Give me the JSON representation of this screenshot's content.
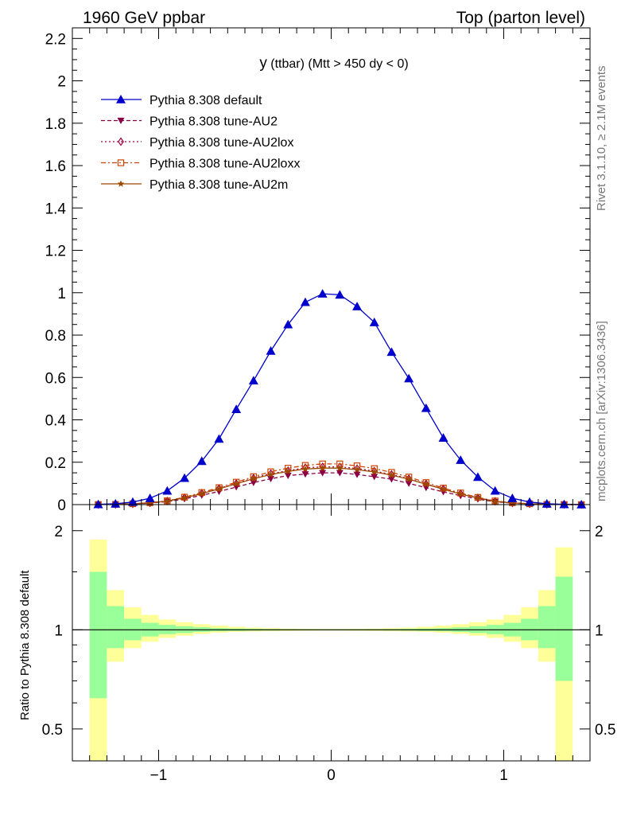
{
  "header": {
    "left": "1960 GeV ppbar",
    "right": "Top (parton level)"
  },
  "side": {
    "rivet": "Rivet 3.1.10, ≥ 2.1M events",
    "mcplots": "mcplots.cern.ch [arXiv:1306.3436]"
  },
  "chart_data": [
    {
      "type": "line",
      "title": "y (ttbar) (Mtt > 450 dy < 0)",
      "title_main": "y",
      "title_rest": " (ttbar) (Mtt > 450 dy < 0)",
      "xlim": [
        -1.5,
        1.5
      ],
      "ylim": [
        0,
        2.25
      ],
      "yticks": [
        0,
        0.2,
        0.4,
        0.6,
        0.8,
        1,
        1.2,
        1.4,
        1.6,
        1.8,
        2,
        2.2
      ],
      "ytick_labels": [
        "0",
        "0.2",
        "0.4",
        "0.6",
        "0.8",
        "1",
        "1.2",
        "1.4",
        "1.6",
        "1.8",
        "2",
        "2.2"
      ],
      "x": [
        -1.35,
        -1.25,
        -1.15,
        -1.05,
        -0.95,
        -0.85,
        -0.75,
        -0.65,
        -0.55,
        -0.45,
        -0.35,
        -0.25,
        -0.15,
        -0.05,
        0.05,
        0.15,
        0.25,
        0.35,
        0.45,
        0.55,
        0.65,
        0.75,
        0.85,
        0.95,
        1.05,
        1.15,
        1.25,
        1.35,
        1.45
      ],
      "series": [
        {
          "name": "Pythia 8.308 default",
          "color": "#0000cc",
          "marker": "triangle-up",
          "dash": "",
          "values": [
            0.001,
            0.004,
            0.012,
            0.03,
            0.065,
            0.125,
            0.205,
            0.31,
            0.45,
            0.585,
            0.725,
            0.85,
            0.955,
            0.995,
            0.99,
            0.935,
            0.86,
            0.72,
            0.595,
            0.455,
            0.315,
            0.21,
            0.13,
            0.065,
            0.03,
            0.012,
            0.004,
            0.001,
            0.0
          ]
        },
        {
          "name": "Pythia 8.308 tune-AU2",
          "color": "#8b0045",
          "marker": "triangle-down",
          "dash": "5,3",
          "values": [
            0.0005,
            0.001,
            0.003,
            0.007,
            0.014,
            0.027,
            0.044,
            0.062,
            0.083,
            0.104,
            0.122,
            0.137,
            0.144,
            0.15,
            0.15,
            0.142,
            0.132,
            0.12,
            0.1,
            0.08,
            0.06,
            0.042,
            0.026,
            0.013,
            0.007,
            0.003,
            0.001,
            0.0005,
            0.0
          ]
        },
        {
          "name": "Pythia 8.308 tune-AU2lox",
          "color": "#a0003c",
          "marker": "diamond-open",
          "dash": "2,3",
          "values": [
            0.0005,
            0.001,
            0.004,
            0.008,
            0.017,
            0.033,
            0.054,
            0.076,
            0.1,
            0.125,
            0.146,
            0.16,
            0.174,
            0.178,
            0.178,
            0.17,
            0.158,
            0.142,
            0.122,
            0.098,
            0.074,
            0.052,
            0.032,
            0.016,
            0.008,
            0.004,
            0.001,
            0.0005,
            0.0
          ]
        },
        {
          "name": "Pythia 8.308 tune-AU2loxx",
          "color": "#cc4400",
          "marker": "square-open",
          "dash": "6,3,2,3",
          "values": [
            0.0005,
            0.001,
            0.004,
            0.009,
            0.018,
            0.035,
            0.057,
            0.08,
            0.106,
            0.132,
            0.155,
            0.172,
            0.185,
            0.192,
            0.192,
            0.183,
            0.17,
            0.152,
            0.13,
            0.104,
            0.078,
            0.055,
            0.034,
            0.017,
            0.009,
            0.004,
            0.001,
            0.0005,
            0.0
          ]
        },
        {
          "name": "Pythia 8.308 tune-AU2m",
          "color": "#9b4a00",
          "marker": "star",
          "dash": "",
          "values": [
            0.0005,
            0.001,
            0.004,
            0.008,
            0.016,
            0.032,
            0.052,
            0.074,
            0.098,
            0.122,
            0.142,
            0.157,
            0.168,
            0.172,
            0.172,
            0.165,
            0.154,
            0.139,
            0.12,
            0.096,
            0.072,
            0.05,
            0.031,
            0.015,
            0.008,
            0.004,
            0.001,
            0.0005,
            0.0
          ]
        }
      ]
    },
    {
      "type": "area",
      "ylabel": "Ratio to Pythia 8.308 default",
      "xlim": [
        -1.5,
        1.5
      ],
      "ylim": [
        0.4,
        2.4
      ],
      "log_y": true,
      "xticks": [
        -1,
        0,
        1
      ],
      "xtick_labels": [
        "−1",
        "0",
        "1"
      ],
      "yticks": [
        0.5,
        1,
        2
      ],
      "ytick_labels": [
        "0.5",
        "1",
        "2"
      ],
      "bin_edges": [
        -1.4,
        -1.3,
        -1.2,
        -1.1,
        -1.0,
        -0.9,
        -0.8,
        -0.7,
        -0.6,
        -0.5,
        -0.4,
        -0.3,
        -0.2,
        -0.1,
        0.0,
        0.1,
        0.2,
        0.3,
        0.4,
        0.5,
        0.6,
        0.7,
        0.8,
        0.9,
        1.0,
        1.1,
        1.2,
        1.3,
        1.4
      ],
      "band_green": {
        "low": [
          0.62,
          0.88,
          0.93,
          0.955,
          0.97,
          0.978,
          0.985,
          0.99,
          0.992,
          0.994,
          0.995,
          0.996,
          0.997,
          0.997,
          0.997,
          0.997,
          0.996,
          0.995,
          0.994,
          0.992,
          0.99,
          0.985,
          0.978,
          0.97,
          0.955,
          0.93,
          0.88,
          0.7
        ],
        "high": [
          1.5,
          1.18,
          1.08,
          1.05,
          1.035,
          1.025,
          1.018,
          1.012,
          1.009,
          1.007,
          1.005,
          1.004,
          1.003,
          1.003,
          1.003,
          1.003,
          1.004,
          1.005,
          1.007,
          1.009,
          1.012,
          1.018,
          1.025,
          1.035,
          1.05,
          1.08,
          1.18,
          1.45
        ]
      },
      "band_yellow": {
        "low": [
          0.4,
          0.8,
          0.88,
          0.92,
          0.945,
          0.96,
          0.972,
          0.98,
          0.985,
          0.988,
          0.99,
          0.992,
          0.993,
          0.994,
          0.994,
          0.993,
          0.992,
          0.99,
          0.988,
          0.985,
          0.98,
          0.972,
          0.96,
          0.945,
          0.92,
          0.88,
          0.8,
          0.4
        ],
        "high": [
          1.88,
          1.32,
          1.17,
          1.11,
          1.075,
          1.055,
          1.04,
          1.03,
          1.022,
          1.016,
          1.012,
          1.009,
          1.007,
          1.006,
          1.006,
          1.007,
          1.009,
          1.012,
          1.016,
          1.022,
          1.03,
          1.04,
          1.055,
          1.075,
          1.11,
          1.17,
          1.32,
          1.78
        ]
      },
      "reference_line": 1
    }
  ]
}
